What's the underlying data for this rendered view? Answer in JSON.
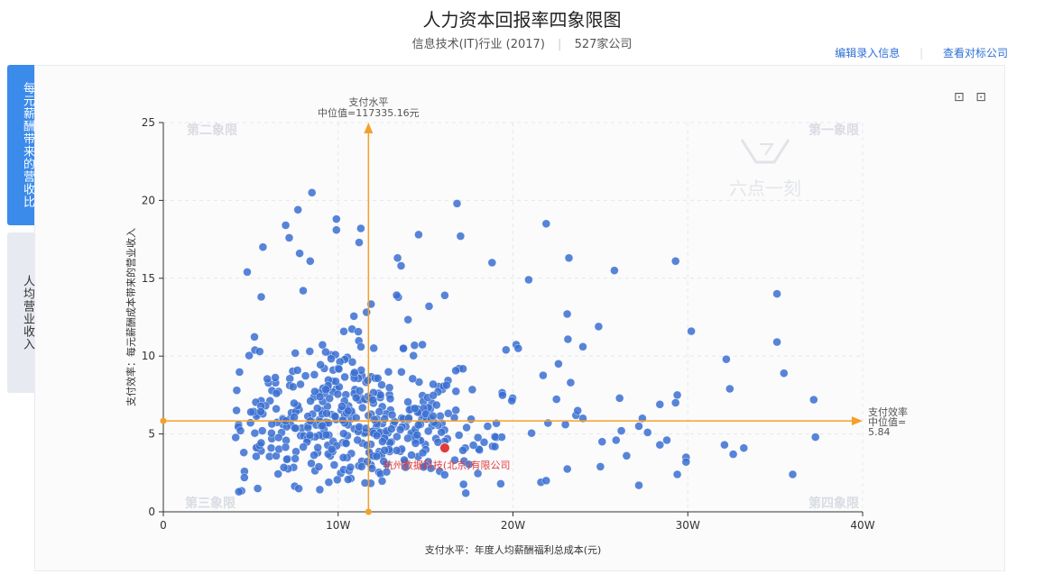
{
  "header": {
    "title": "人力资本回报率四象限图",
    "industry": "信息技术(IT)行业 (2017)",
    "company_count": "527家公司"
  },
  "links": {
    "edit": "编辑录入信息",
    "benchmark": "查看对标公司"
  },
  "tabs": [
    {
      "label": "每元薪酬带来的营收比",
      "active": true
    },
    {
      "label": "人均营业收入",
      "active": false
    }
  ],
  "toolbox": {
    "zoom_icon": "⊡",
    "restore_icon": "⊡"
  },
  "watermark": {
    "brand": "六点一刻"
  },
  "chart_data": {
    "type": "scatter",
    "xlabel": "支付水平：年度人均薪酬福利总成本(元)",
    "ylabel": "支付效率：每元薪酬成本带来的营业收入",
    "xlim": [
      0,
      400000
    ],
    "ylim": [
      0,
      25
    ],
    "xticks": [
      {
        "value": 0,
        "label": "0"
      },
      {
        "value": 100000,
        "label": "10W"
      },
      {
        "value": 200000,
        "label": "20W"
      },
      {
        "value": 300000,
        "label": "30W"
      },
      {
        "value": 400000,
        "label": "40W"
      }
    ],
    "yticks": [
      {
        "value": 0,
        "label": "0"
      },
      {
        "value": 5,
        "label": "5"
      },
      {
        "value": 10,
        "label": "10"
      },
      {
        "value": 15,
        "label": "15"
      },
      {
        "value": 20,
        "label": "20"
      },
      {
        "value": 25,
        "label": "25"
      }
    ],
    "grid": true,
    "quadrants": {
      "q1": "第一象限",
      "q2": "第二象限",
      "q3": "第三象限",
      "q4": "第四象限"
    },
    "median_x": {
      "value": 117335.16,
      "line1": "支付水平",
      "line2": "中位值=117335.16元"
    },
    "median_y": {
      "value": 5.84,
      "line1": "支付效率",
      "line2": "中位值=",
      "line3": "5.84"
    },
    "highlight": {
      "label": "杭州数据科技(北京)有限公司",
      "x": 161000,
      "y": 4.1,
      "color": "#e03b3b"
    },
    "point_color": "#3a6fd1",
    "outliers": [
      [
        85000,
        20.5
      ],
      [
        168000,
        19.8
      ],
      [
        77000,
        19.4
      ],
      [
        99000,
        18.8
      ],
      [
        219000,
        18.5
      ],
      [
        70000,
        18.4
      ],
      [
        113000,
        18.2
      ],
      [
        99000,
        18.1
      ],
      [
        170000,
        17.7
      ],
      [
        146000,
        17.8
      ],
      [
        72000,
        17.6
      ],
      [
        57000,
        17.0
      ],
      [
        112000,
        17.3
      ],
      [
        232000,
        16.3
      ],
      [
        209000,
        14.9
      ],
      [
        188000,
        16.0
      ],
      [
        258000,
        15.5
      ],
      [
        293000,
        16.1
      ],
      [
        78000,
        16.6
      ],
      [
        134000,
        16.3
      ],
      [
        136000,
        15.8
      ],
      [
        84000,
        16.1
      ],
      [
        48000,
        15.4
      ],
      [
        80000,
        14.2
      ],
      [
        56000,
        13.8
      ],
      [
        161000,
        13.9
      ],
      [
        152000,
        13.2
      ],
      [
        231000,
        12.7
      ],
      [
        249000,
        11.9
      ],
      [
        302000,
        11.6
      ],
      [
        351000,
        14.0
      ],
      [
        351000,
        10.9
      ],
      [
        355000,
        8.9
      ],
      [
        322000,
        9.8
      ],
      [
        324000,
        7.9
      ],
      [
        372000,
        7.2
      ],
      [
        294000,
        7.5
      ],
      [
        293000,
        7.0
      ],
      [
        284000,
        6.9
      ],
      [
        240000,
        10.6
      ],
      [
        203000,
        10.5
      ],
      [
        196000,
        10.4
      ],
      [
        226000,
        9.5
      ],
      [
        233000,
        8.3
      ],
      [
        261000,
        7.3
      ],
      [
        240000,
        6.0
      ],
      [
        274000,
        6.0
      ],
      [
        262000,
        5.2
      ],
      [
        272000,
        5.5
      ],
      [
        277000,
        5.1
      ],
      [
        321000,
        4.3
      ],
      [
        332000,
        4.1
      ],
      [
        326000,
        3.7
      ],
      [
        373000,
        4.8
      ],
      [
        284000,
        4.3
      ],
      [
        288000,
        4.6
      ],
      [
        259000,
        4.6
      ],
      [
        251000,
        4.5
      ],
      [
        265000,
        3.6
      ],
      [
        299000,
        3.5
      ],
      [
        299000,
        3.2
      ],
      [
        294000,
        2.4
      ],
      [
        250000,
        2.9
      ],
      [
        272000,
        1.7
      ],
      [
        360000,
        2.4
      ],
      [
        216000,
        1.9
      ],
      [
        219000,
        2.0
      ],
      [
        193000,
        1.8
      ],
      [
        173000,
        1.2
      ],
      [
        54000,
        1.5
      ],
      [
        42000,
        7.8
      ],
      [
        236000,
        6.2
      ],
      [
        230000,
        5.6
      ],
      [
        220000,
        5.7
      ],
      [
        237000,
        6.5
      ]
    ],
    "cluster": {
      "n": 450,
      "seed": 42,
      "center": [
        110000,
        6.0
      ],
      "spread": [
        50000,
        3.0
      ],
      "xlim": [
        40000,
        235000
      ],
      "ylim": [
        1.2,
        14.0
      ]
    }
  }
}
